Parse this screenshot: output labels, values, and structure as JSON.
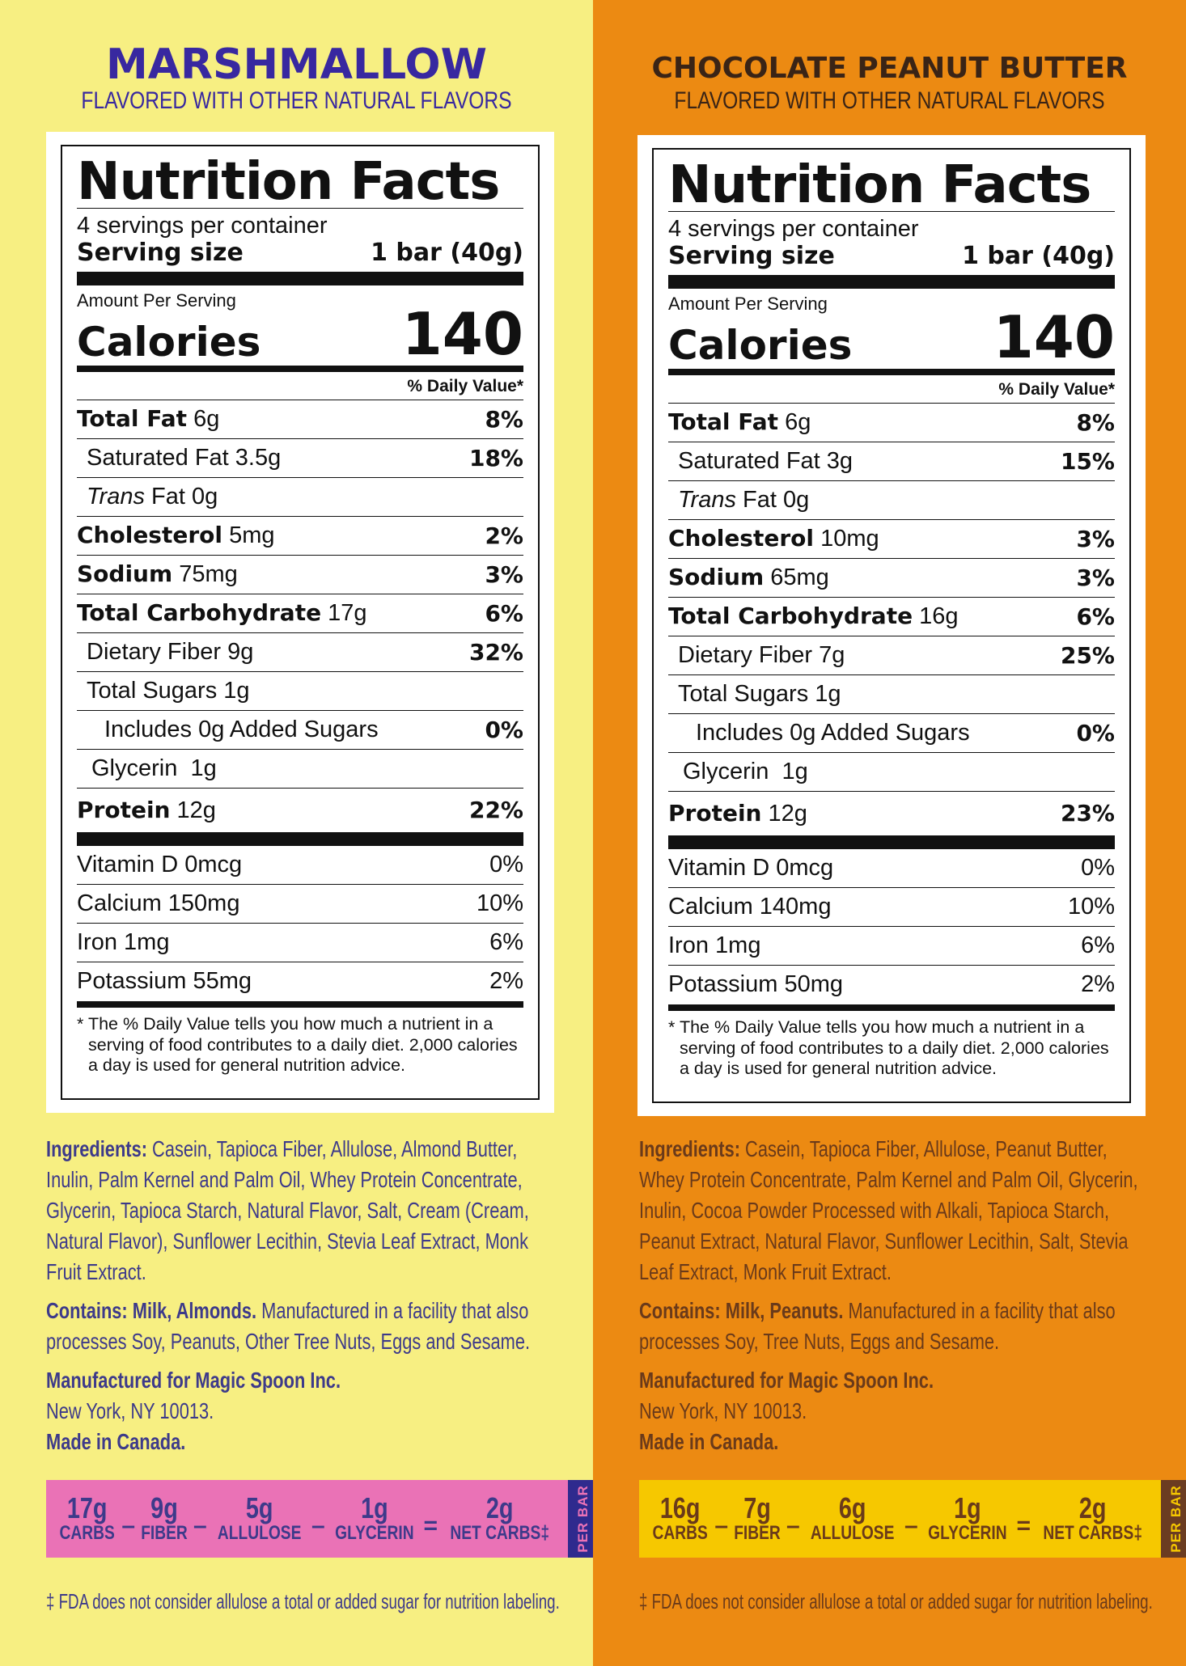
{
  "colors": {
    "left_bg": "#f7ef82",
    "right_bg": "#ec8a12",
    "left_title": "#3828a0",
    "left_text": "#3d3a8a",
    "right_title": "#3a2416",
    "right_text": "#6a3a1a",
    "left_carb_bar": "#ea72b6",
    "left_per_bar": "#2f2a8e",
    "right_carb_bar": "#f6c800",
    "right_per_bar": "#6b3c21"
  },
  "panels": [
    {
      "flavor": "MARSHMALLOW",
      "subtitle": "FLAVORED WITH OTHER NATURAL FLAVORS",
      "label": {
        "title": "Nutrition Facts",
        "servings": "4 servings per container",
        "serving_size_label": "Serving size",
        "serving_size": "1 bar (40g)",
        "amount_per_serving": "Amount Per Serving",
        "calories_label": "Calories",
        "calories": "140",
        "dv_header": "% Daily Value*",
        "total_fat": {
          "label": "Total Fat",
          "amount": "6g",
          "dv": "8%"
        },
        "saturated_fat": {
          "label": "Saturated Fat",
          "amount": "3.5g",
          "dv": "18%"
        },
        "trans_fat": {
          "label": "Trans",
          "amount": "Fat 0g"
        },
        "cholesterol": {
          "label": "Cholesterol",
          "amount": "5mg",
          "dv": "2%"
        },
        "sodium": {
          "label": "Sodium",
          "amount": "75mg",
          "dv": "3%"
        },
        "total_carb": {
          "label": "Total Carbohydrate",
          "amount": "17g",
          "dv": "6%"
        },
        "fiber": {
          "label": "Dietary Fiber",
          "amount": "9g",
          "dv": "32%"
        },
        "sugars": {
          "label": "Total Sugars",
          "amount": "1g"
        },
        "added_sugars": {
          "label": "Includes 0g Added Sugars",
          "dv": "0%"
        },
        "glycerin": {
          "label": "Glycerin",
          "amount": "1g"
        },
        "protein": {
          "label": "Protein",
          "amount": "12g",
          "dv": "22%"
        },
        "vitamin_d": {
          "label": "Vitamin D 0mcg",
          "dv": "0%"
        },
        "calcium": {
          "label": "Calcium 150mg",
          "dv": "10%"
        },
        "iron": {
          "label": "Iron 1mg",
          "dv": "6%"
        },
        "potassium": {
          "label": "Potassium 55mg",
          "dv": "2%"
        },
        "footnote": "* The % Daily Value tells you how much a nutrient in a serving of food contributes to a daily diet. 2,000 calories a day is used for general nutrition advice."
      },
      "ingredients_label": "Ingredients:",
      "ingredients": "Casein, Tapioca Fiber, Allulose, Almond Butter, Inulin, Palm Kernel and Palm Oil, Whey Protein Concentrate, Glycerin, Tapioca Starch, Natural Flavor, Salt, Cream (Cream, Natural Flavor), Sunflower Lecithin, Stevia Leaf Extract, Monk Fruit Extract.",
      "contains_label": "Contains: Milk, Almonds.",
      "contains_text": "Manufactured in a facility that also processes Soy, Peanuts, Other Tree Nuts, Eggs and Sesame.",
      "manufactured": "Manufactured for Magic Spoon Inc.",
      "address": "New York, NY 10013.",
      "made_in": "Made in Canada.",
      "carbs_bar": {
        "carbs_val": "17g",
        "carbs_lbl": "CARBS",
        "fiber_val": "9g",
        "fiber_lbl": "FIBER",
        "allulose_val": "5g",
        "allulose_lbl": "ALLULOSE",
        "glycerin_val": "1g",
        "glycerin_lbl": "GLYCERIN",
        "net_val": "2g",
        "net_lbl": "NET CARBS‡",
        "minus": "–",
        "equals": "=",
        "per_bar": "PER BAR"
      },
      "fda_note": "‡ FDA does not consider allulose a total or added sugar for nutrition labeling."
    },
    {
      "flavor": "CHOCOLATE PEANUT BUTTER",
      "subtitle": "FLAVORED WITH OTHER NATURAL FLAVORS",
      "label": {
        "title": "Nutrition Facts",
        "servings": "4 servings per container",
        "serving_size_label": "Serving size",
        "serving_size": "1 bar (40g)",
        "amount_per_serving": "Amount Per Serving",
        "calories_label": "Calories",
        "calories": "140",
        "dv_header": "% Daily Value*",
        "total_fat": {
          "label": "Total Fat",
          "amount": "6g",
          "dv": "8%"
        },
        "saturated_fat": {
          "label": "Saturated Fat",
          "amount": "3g",
          "dv": "15%"
        },
        "trans_fat": {
          "label": "Trans",
          "amount": "Fat 0g"
        },
        "cholesterol": {
          "label": "Cholesterol",
          "amount": "10mg",
          "dv": "3%"
        },
        "sodium": {
          "label": "Sodium",
          "amount": "65mg",
          "dv": "3%"
        },
        "total_carb": {
          "label": "Total Carbohydrate",
          "amount": "16g",
          "dv": "6%"
        },
        "fiber": {
          "label": "Dietary Fiber",
          "amount": "7g",
          "dv": "25%"
        },
        "sugars": {
          "label": "Total Sugars",
          "amount": "1g"
        },
        "added_sugars": {
          "label": "Includes 0g Added Sugars",
          "dv": "0%"
        },
        "glycerin": {
          "label": "Glycerin",
          "amount": "1g"
        },
        "protein": {
          "label": "Protein",
          "amount": "12g",
          "dv": "23%"
        },
        "vitamin_d": {
          "label": "Vitamin D 0mcg",
          "dv": "0%"
        },
        "calcium": {
          "label": "Calcium 140mg",
          "dv": "10%"
        },
        "iron": {
          "label": "Iron 1mg",
          "dv": "6%"
        },
        "potassium": {
          "label": "Potassium 50mg",
          "dv": "2%"
        },
        "footnote": "* The % Daily Value tells you how much a nutrient in a serving of food contributes to a daily diet. 2,000 calories a day is used for general nutrition advice."
      },
      "ingredients_label": "Ingredients:",
      "ingredients": "Casein, Tapioca Fiber, Allulose, Peanut Butter, Whey Protein Concentrate, Palm Kernel and Palm Oil, Glycerin, Inulin, Cocoa Powder Processed with Alkali, Tapioca Starch, Peanut Extract, Natural Flavor, Sunflower Lecithin, Salt, Stevia Leaf Extract, Monk Fruit Extract.",
      "contains_label": "Contains: Milk, Peanuts.",
      "contains_text": "Manufactured in a facility that also processes Soy, Tree Nuts, Eggs and Sesame.",
      "manufactured": "Manufactured for Magic Spoon Inc.",
      "address": "New York, NY 10013.",
      "made_in": "Made in Canada.",
      "carbs_bar": {
        "carbs_val": "16g",
        "carbs_lbl": "CARBS",
        "fiber_val": "7g",
        "fiber_lbl": "FIBER",
        "allulose_val": "6g",
        "allulose_lbl": "ALLULOSE",
        "glycerin_val": "1g",
        "glycerin_lbl": "GLYCERIN",
        "net_val": "2g",
        "net_lbl": "NET CARBS‡",
        "minus": "–",
        "equals": "=",
        "per_bar": "PER BAR"
      },
      "fda_note": "‡ FDA does not consider allulose a total or added sugar for nutrition labeling."
    }
  ]
}
